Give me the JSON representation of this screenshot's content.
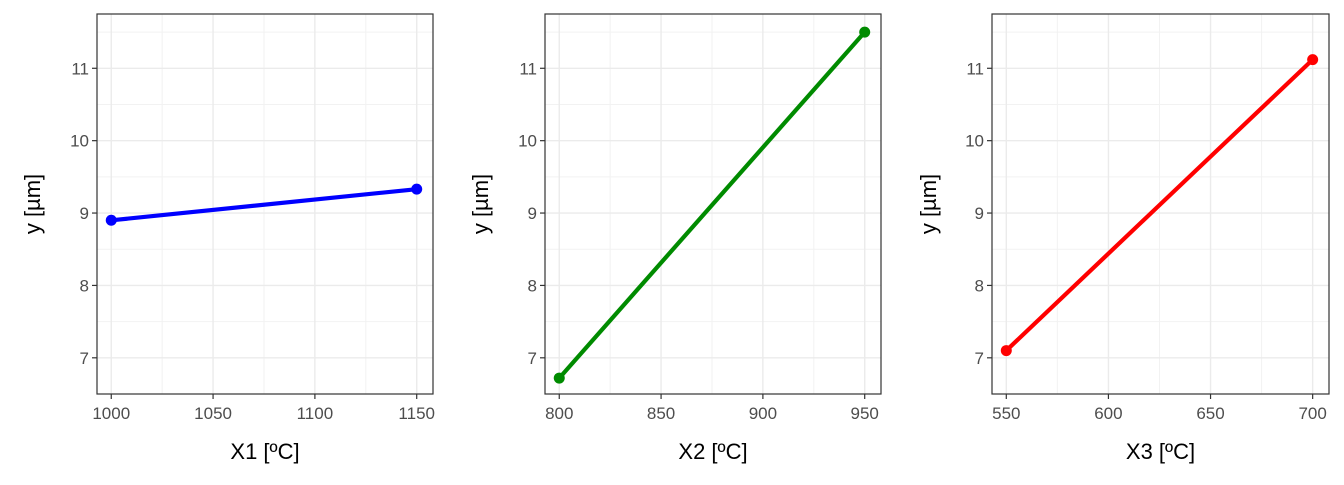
{
  "chart_data": [
    {
      "type": "line",
      "xlabel": "X1 [ºC]",
      "ylabel": "y [µm]",
      "x": [
        1000,
        1150
      ],
      "series": [
        {
          "values": [
            8.9,
            9.33
          ],
          "color": "#0000ff"
        }
      ],
      "xlim": [
        993,
        1158
      ],
      "ylim": [
        6.5,
        11.75
      ],
      "xticks": [
        1000,
        1050,
        1100,
        1150
      ],
      "xtick_labels": [
        "1000",
        "1050",
        "1100",
        "1150"
      ],
      "yticks": [
        7,
        8,
        9,
        10,
        11
      ],
      "ytick_labels": [
        "7",
        "8",
        "9",
        "10",
        "11"
      ],
      "grid": true
    },
    {
      "type": "line",
      "xlabel": "X2 [ºC]",
      "ylabel": "y [µm]",
      "x": [
        800,
        950
      ],
      "series": [
        {
          "values": [
            6.72,
            11.5
          ],
          "color": "#008b00"
        }
      ],
      "xlim": [
        793,
        958
      ],
      "ylim": [
        6.5,
        11.75
      ],
      "xticks": [
        800,
        850,
        900,
        950
      ],
      "xtick_labels": [
        "800",
        "850",
        "900",
        "950"
      ],
      "yticks": [
        7,
        8,
        9,
        10,
        11
      ],
      "ytick_labels": [
        "7",
        "8",
        "9",
        "10",
        "11"
      ],
      "grid": true
    },
    {
      "type": "line",
      "xlabel": "X3 [ºC]",
      "ylabel": "y [µm]",
      "x": [
        550,
        700
      ],
      "series": [
        {
          "values": [
            7.1,
            11.12
          ],
          "color": "#ff0000"
        }
      ],
      "xlim": [
        543,
        708
      ],
      "ylim": [
        6.5,
        11.75
      ],
      "xticks": [
        550,
        600,
        650,
        700
      ],
      "xtick_labels": [
        "550",
        "600",
        "650",
        "700"
      ],
      "yticks": [
        7,
        8,
        9,
        10,
        11
      ],
      "ytick_labels": [
        "7",
        "8",
        "9",
        "10",
        "11"
      ],
      "grid": true
    }
  ]
}
